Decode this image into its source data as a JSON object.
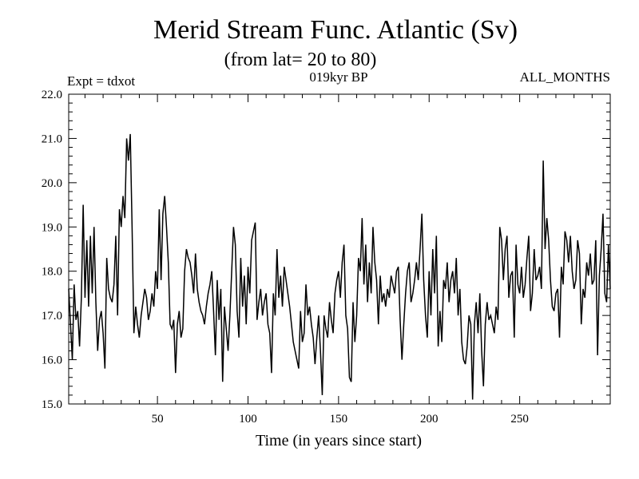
{
  "chart_data": {
    "type": "line",
    "title": "Merid Stream Func. Atlantic (Sv)",
    "subtitle": "(from lat= 20 to 80)",
    "experiment_label": "Expt = tdxot",
    "period_label": "019kyr BP",
    "months_label": "ALL_MONTHS",
    "xlabel": "Time (in years since start)",
    "ylabel": "",
    "xlim": [
      1,
      300
    ],
    "ylim": [
      15.0,
      22.0
    ],
    "x_ticks": [
      50,
      100,
      150,
      200,
      250
    ],
    "y_ticks": [
      15.0,
      16.0,
      17.0,
      18.0,
      19.0,
      20.0,
      21.0,
      22.0
    ],
    "grid": false,
    "line_color": "#000000",
    "series": [
      {
        "x_start": 1,
        "x_step": 1,
        "values": [
          17.6,
          16.8,
          16.0,
          17.7,
          16.9,
          17.1,
          16.3,
          17.4,
          19.5,
          17.4,
          18.7,
          17.2,
          18.8,
          17.5,
          19.0,
          17.3,
          16.2,
          16.9,
          17.1,
          16.6,
          15.8,
          18.3,
          17.6,
          17.4,
          17.3,
          17.7,
          18.8,
          17.0,
          19.4,
          19.0,
          19.7,
          19.2,
          21.0,
          20.5,
          21.1,
          19.0,
          16.6,
          17.2,
          16.8,
          16.5,
          17.0,
          17.3,
          17.6,
          17.4,
          16.9,
          17.1,
          17.5,
          17.2,
          18.0,
          17.6,
          19.4,
          17.8,
          19.3,
          19.7,
          19.0,
          18.2,
          16.8,
          16.7,
          16.9,
          15.7,
          16.8,
          17.1,
          16.5,
          16.7,
          18.0,
          18.5,
          18.3,
          18.2,
          17.9,
          17.5,
          18.4,
          17.6,
          17.3,
          17.1,
          17.0,
          16.8,
          17.2,
          17.5,
          17.7,
          18.0,
          17.1,
          16.1,
          17.8,
          16.9,
          17.6,
          15.5,
          17.2,
          16.7,
          16.2,
          17.0,
          18.0,
          19.0,
          18.6,
          17.1,
          16.5,
          18.3,
          17.2,
          17.9,
          16.8,
          18.1,
          17.5,
          18.7,
          18.9,
          19.1,
          16.9,
          17.3,
          17.6,
          17.0,
          17.3,
          17.5,
          16.8,
          16.6,
          15.7,
          17.5,
          17.0,
          18.5,
          17.4,
          17.9,
          17.2,
          18.1,
          17.8,
          17.5,
          17.2,
          16.8,
          16.4,
          16.2,
          16.0,
          15.8,
          17.1,
          16.4,
          16.6,
          17.7,
          17.0,
          17.2,
          16.8,
          16.5,
          15.9,
          16.5,
          17.0,
          16.2,
          15.2,
          17.0,
          16.7,
          16.5,
          17.3,
          16.9,
          16.6,
          17.5,
          17.8,
          18.0,
          17.4,
          18.2,
          18.6,
          17.0,
          16.7,
          15.6,
          15.5,
          17.3,
          16.4,
          17.0,
          18.3,
          18.0,
          19.2,
          17.7,
          18.6,
          17.3,
          18.2,
          17.5,
          19.0,
          18.2,
          17.8,
          16.8,
          17.9,
          17.3,
          17.5,
          17.2,
          17.6,
          17.4,
          17.9,
          17.7,
          17.5,
          18.0,
          18.1,
          16.9,
          16.0,
          16.8,
          17.5,
          18.0,
          18.2,
          17.3,
          17.5,
          17.8,
          18.2,
          17.8,
          18.5,
          19.3,
          17.8,
          17.0,
          16.5,
          18.0,
          17.0,
          18.5,
          17.5,
          18.8,
          16.3,
          17.1,
          16.4,
          17.8,
          17.6,
          18.2,
          17.3,
          17.8,
          18.0,
          17.5,
          18.3,
          17.0,
          17.6,
          16.4,
          16.0,
          15.9,
          16.3,
          17.0,
          16.8,
          15.1,
          16.8,
          17.3,
          16.6,
          17.5,
          16.2,
          15.4,
          16.8,
          17.3,
          16.9,
          17.0,
          16.8,
          16.6,
          17.2,
          16.9,
          19.0,
          18.7,
          17.8,
          18.5,
          18.8,
          17.4,
          17.9,
          18.0,
          16.5,
          18.6,
          17.7,
          17.5,
          18.1,
          17.4,
          17.7,
          18.3,
          18.8,
          17.1,
          17.5,
          18.5,
          17.8,
          17.9,
          18.1,
          17.6,
          20.5,
          18.5,
          19.2,
          18.7,
          17.8,
          17.2,
          17.1,
          17.5,
          17.6,
          16.5,
          18.1,
          17.7,
          18.9,
          18.7,
          18.2,
          18.8,
          18.0,
          17.6,
          17.8,
          18.7,
          18.4,
          16.8,
          17.6,
          17.4,
          18.2,
          17.9,
          18.4,
          17.7,
          17.8,
          18.7,
          16.1,
          17.9,
          18.5,
          19.3,
          17.5,
          17.3,
          18.6,
          17.6
        ]
      }
    ]
  }
}
